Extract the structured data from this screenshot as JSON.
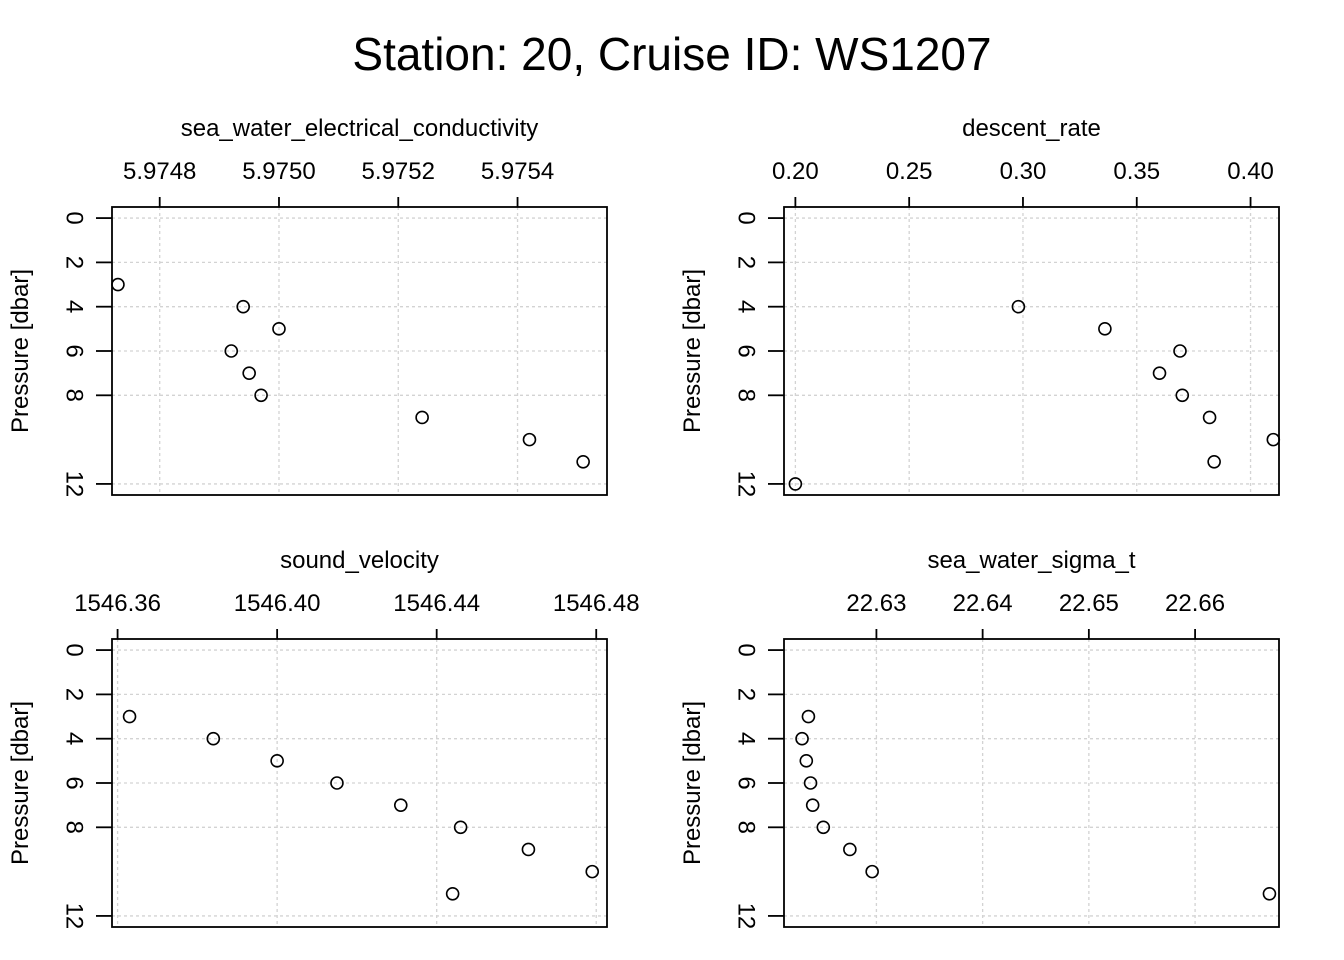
{
  "figure": {
    "title": "Station: 20, Cruise ID: WS1207"
  },
  "chart_data": [
    {
      "type": "scatter",
      "title": "sea_water_electrical_conductivity",
      "xlabel": "sea_water_electrical_conductivity",
      "ylabel": "Pressure [dbar]",
      "xlim": [
        5.97472,
        5.97555
      ],
      "ylim": [
        12.5,
        -0.5
      ],
      "y_reversed": true,
      "x_axis_position": "top",
      "xticks": [
        "5.9748",
        "5.9750",
        "5.9752",
        "5.9754"
      ],
      "yticks": [
        "0",
        "2",
        "4",
        "6",
        "8",
        "12"
      ],
      "grid": true,
      "points": [
        {
          "x": 5.97473,
          "y": 3
        },
        {
          "x": 5.97494,
          "y": 4
        },
        {
          "x": 5.975,
          "y": 5
        },
        {
          "x": 5.97492,
          "y": 6
        },
        {
          "x": 5.97495,
          "y": 7
        },
        {
          "x": 5.97497,
          "y": 8
        },
        {
          "x": 5.97524,
          "y": 9
        },
        {
          "x": 5.97542,
          "y": 10
        },
        {
          "x": 5.97551,
          "y": 11
        }
      ]
    },
    {
      "type": "scatter",
      "title": "descent_rate",
      "xlabel": "descent_rate",
      "ylabel": "Pressure [dbar]",
      "xlim": [
        0.195,
        0.4125
      ],
      "ylim": [
        12.5,
        -0.5
      ],
      "y_reversed": true,
      "x_axis_position": "top",
      "xticks": [
        "0.20",
        "0.25",
        "0.30",
        "0.35",
        "0.40"
      ],
      "yticks": [
        "0",
        "2",
        "4",
        "6",
        "8",
        "12"
      ],
      "grid": true,
      "points": [
        {
          "x": 0.298,
          "y": 4
        },
        {
          "x": 0.336,
          "y": 5
        },
        {
          "x": 0.369,
          "y": 6
        },
        {
          "x": 0.36,
          "y": 7
        },
        {
          "x": 0.37,
          "y": 8
        },
        {
          "x": 0.382,
          "y": 9
        },
        {
          "x": 0.41,
          "y": 10
        },
        {
          "x": 0.384,
          "y": 11
        },
        {
          "x": 0.2,
          "y": 12
        }
      ]
    },
    {
      "type": "scatter",
      "title": "sound_velocity",
      "xlabel": "sound_velocity",
      "ylabel": "Pressure [dbar]",
      "xlim": [
        1546.3586,
        1546.4827
      ],
      "ylim": [
        12.5,
        -0.5
      ],
      "y_reversed": true,
      "x_axis_position": "top",
      "xticks": [
        "1546.36",
        "1546.40",
        "1546.44",
        "1546.48"
      ],
      "yticks": [
        "0",
        "2",
        "4",
        "6",
        "8",
        "12"
      ],
      "grid": true,
      "points": [
        {
          "x": 1546.363,
          "y": 3
        },
        {
          "x": 1546.384,
          "y": 4
        },
        {
          "x": 1546.4,
          "y": 5
        },
        {
          "x": 1546.415,
          "y": 6
        },
        {
          "x": 1546.431,
          "y": 7
        },
        {
          "x": 1546.446,
          "y": 8
        },
        {
          "x": 1546.463,
          "y": 9
        },
        {
          "x": 1546.479,
          "y": 10
        },
        {
          "x": 1546.444,
          "y": 11
        }
      ]
    },
    {
      "type": "scatter",
      "title": "sea_water_sigma_t",
      "xlabel": "sea_water_sigma_t",
      "ylabel": "Pressure [dbar]",
      "xlim": [
        22.6213,
        22.6679
      ],
      "ylim": [
        12.5,
        -0.5
      ],
      "y_reversed": true,
      "x_axis_position": "top",
      "xticks": [
        "22.63",
        "22.64",
        "22.65",
        "22.66"
      ],
      "yticks": [
        "0",
        "2",
        "4",
        "6",
        "8",
        "12"
      ],
      "grid": true,
      "points": [
        {
          "x": 22.6236,
          "y": 3
        },
        {
          "x": 22.623,
          "y": 4
        },
        {
          "x": 22.6234,
          "y": 5
        },
        {
          "x": 22.6238,
          "y": 6
        },
        {
          "x": 22.624,
          "y": 7
        },
        {
          "x": 22.625,
          "y": 8
        },
        {
          "x": 22.6275,
          "y": 9
        },
        {
          "x": 22.6296,
          "y": 10
        },
        {
          "x": 22.667,
          "y": 11
        }
      ]
    }
  ]
}
